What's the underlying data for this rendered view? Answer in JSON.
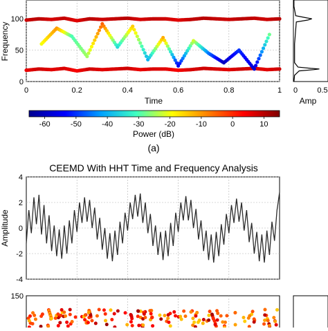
{
  "figure": {
    "panel_caption": "(a)",
    "section_title": "CEEMD With HHT Time and Frequency Analysis"
  },
  "chart_data": [
    {
      "type": "scatter",
      "panel": "top-time-frequency",
      "xlabel": "Time",
      "ylabel": "Frequency",
      "xlim": [
        0,
        1
      ],
      "ylim": [
        0,
        130
      ],
      "x_ticks": [
        "0",
        "0.2",
        "0.4",
        "0.6",
        "0.8",
        "1"
      ],
      "y_ticks": [
        "0",
        "50",
        "100"
      ],
      "grid": true,
      "series": [
        {
          "x": [
            0,
            0.05,
            0.1,
            0.15,
            0.2,
            0.25,
            0.3,
            0.35,
            0.4,
            0.45,
            0.5,
            0.55,
            0.6,
            0.65,
            0.7,
            0.75,
            0.8,
            0.85,
            0.9,
            0.95,
            1
          ],
          "y": [
            98,
            100,
            99,
            101,
            97,
            100,
            99,
            100,
            101,
            99,
            100,
            100,
            98,
            99,
            101,
            100,
            99,
            100,
            101,
            99,
            100
          ],
          "power_db": [
            8,
            10,
            7,
            9,
            6,
            10,
            8,
            9,
            10,
            7,
            9,
            8,
            6,
            9,
            10,
            9,
            8,
            10,
            9,
            8,
            10
          ]
        },
        {
          "x": [
            0,
            0.05,
            0.1,
            0.15,
            0.2,
            0.25,
            0.3,
            0.35,
            0.4,
            0.45,
            0.5,
            0.55,
            0.6,
            0.65,
            0.7,
            0.75,
            0.8,
            0.85,
            0.9,
            0.95,
            1
          ],
          "y": [
            18,
            20,
            19,
            21,
            17,
            20,
            19,
            20,
            21,
            19,
            20,
            20,
            18,
            19,
            21,
            20,
            19,
            20,
            21,
            19,
            20
          ],
          "power_db": [
            5,
            8,
            6,
            7,
            4,
            8,
            6,
            7,
            8,
            5,
            7,
            6,
            4,
            7,
            8,
            7,
            6,
            8,
            7,
            6,
            8
          ]
        },
        {
          "x": [
            0.06,
            0.12,
            0.18,
            0.24,
            0.3,
            0.36,
            0.42,
            0.48,
            0.54,
            0.6,
            0.66,
            0.72,
            0.78,
            0.84,
            0.9,
            0.96
          ],
          "y": [
            60,
            85,
            72,
            40,
            92,
            55,
            88,
            35,
            70,
            25,
            65,
            45,
            30,
            50,
            20,
            75
          ],
          "power_db": [
            -20,
            -10,
            -30,
            -25,
            -5,
            -35,
            -15,
            -40,
            -12,
            -55,
            -22,
            -45,
            -60,
            -50,
            -58,
            -28
          ]
        }
      ]
    },
    {
      "type": "line",
      "panel": "top-marginal-amplitude",
      "xlabel": "Amp",
      "x_ticks": [
        "0",
        "0.5"
      ],
      "ylim": [
        0,
        130
      ],
      "x": [
        0,
        10,
        17,
        19,
        20,
        21,
        23,
        30,
        60,
        95,
        98,
        100,
        102,
        105,
        120,
        130
      ],
      "values": [
        0.01,
        0.02,
        0.1,
        0.35,
        0.45,
        0.3,
        0.08,
        0.02,
        0.02,
        0.05,
        0.25,
        0.32,
        0.2,
        0.04,
        0.01,
        0.01
      ]
    },
    {
      "type": "colorbar",
      "panel": "power-colorbar",
      "xlabel": "Power (dB)",
      "x_ticks": [
        "-60",
        "-50",
        "-40",
        "-30",
        "-20",
        "-10",
        "0",
        "10"
      ],
      "xlim": [
        -65,
        15
      ],
      "colormap": [
        "#00008f",
        "#0000ff",
        "#00a0ff",
        "#40ffc0",
        "#ffff00",
        "#ff8000",
        "#ff0000",
        "#800000"
      ]
    },
    {
      "type": "line",
      "panel": "amplitude-signal",
      "ylabel": "Amplitude",
      "xlim": [
        0,
        1
      ],
      "ylim": [
        -4,
        4
      ],
      "y_ticks": [
        "4",
        "2",
        "0",
        "-2",
        "-4"
      ],
      "grid": true,
      "color": "#2b2b2b",
      "x": [
        0,
        0.01,
        0.02,
        0.03,
        0.04,
        0.05,
        0.06,
        0.07,
        0.08,
        0.09,
        0.1,
        0.11,
        0.12,
        0.13,
        0.14,
        0.15,
        0.16,
        0.17,
        0.18,
        0.19,
        0.2,
        0.21,
        0.22,
        0.23,
        0.24,
        0.25,
        0.26,
        0.27,
        0.28,
        0.29,
        0.3,
        0.31,
        0.32,
        0.33,
        0.34,
        0.35,
        0.36,
        0.37,
        0.38,
        0.39,
        0.4,
        0.41,
        0.42,
        0.43,
        0.44,
        0.45,
        0.46,
        0.47,
        0.48,
        0.49,
        0.5,
        0.51,
        0.52,
        0.53,
        0.54,
        0.55,
        0.56,
        0.57,
        0.58,
        0.59,
        0.6,
        0.61,
        0.62,
        0.63,
        0.64,
        0.65,
        0.66,
        0.67,
        0.68,
        0.69,
        0.7,
        0.71,
        0.72,
        0.73,
        0.74,
        0.75,
        0.76,
        0.77,
        0.78,
        0.79,
        0.8,
        0.81,
        0.82,
        0.83,
        0.84,
        0.85,
        0.86,
        0.87,
        0.88,
        0.89,
        0.9,
        0.91,
        0.92,
        0.93,
        0.94,
        0.95,
        0.96,
        0.97,
        0.98,
        0.99,
        1
      ],
      "values": [
        -1.2,
        1.4,
        -0.4,
        2.4,
        0.3,
        2.6,
        -0.5,
        1.8,
        -1.2,
        1.0,
        -1.8,
        0.2,
        -2.2,
        -0.1,
        -2.4,
        0.2,
        -2.0,
        0.6,
        -1.2,
        1.4,
        -0.3,
        2.0,
        0.4,
        2.4,
        0.5,
        2.2,
        0.0,
        1.6,
        -0.9,
        0.8,
        -1.7,
        0.0,
        -2.4,
        -0.4,
        -2.6,
        -0.2,
        -2.1,
        0.5,
        -1.2,
        1.2,
        -0.2,
        2.0,
        0.7,
        2.6,
        0.9,
        2.7,
        0.4,
        2.0,
        -0.4,
        1.1,
        -1.4,
        0.2,
        -2.1,
        -0.3,
        -2.5,
        -0.2,
        -2.2,
        0.4,
        -1.4,
        1.2,
        -0.3,
        2.0,
        0.6,
        2.5,
        0.6,
        2.2,
        0.0,
        1.5,
        -0.9,
        0.6,
        -1.8,
        -0.2,
        -2.5,
        -0.5,
        -2.7,
        -0.3,
        -2.2,
        0.3,
        -1.3,
        1.1,
        -0.4,
        1.8,
        0.4,
        2.3,
        0.5,
        2.0,
        -0.2,
        1.4,
        -1.1,
        0.4,
        -2.0,
        -0.3,
        -2.6,
        -0.5,
        -2.7,
        -0.2,
        -2.1,
        0.5,
        -1.0,
        1.4,
        2.8
      ]
    },
    {
      "type": "scatter",
      "panel": "bottom-time-frequency",
      "ylim": [
        0,
        150
      ],
      "y_ticks": [
        "150"
      ],
      "grid": true
    }
  ]
}
